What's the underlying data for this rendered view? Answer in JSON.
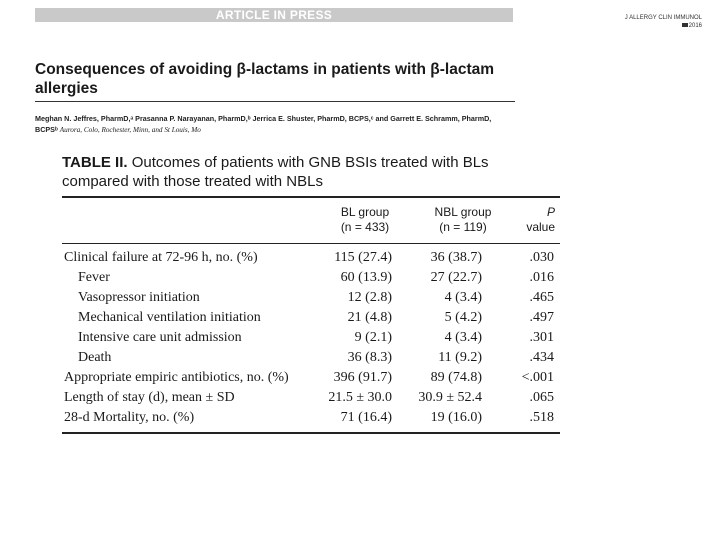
{
  "banner": "ARTICLE IN PRESS",
  "journal": {
    "name": "J ALLERGY CLIN IMMUNOL",
    "year": "2016"
  },
  "article_title": "Consequences of avoiding β-lactams in patients with β-lactam allergies",
  "authors": "Meghan N. Jeffres, PharmD,ᵃ Prasanna P. Narayanan, PharmD,ᵇ Jerrica E. Shuster, PharmD, BCPS,ᶜ and Garrett E. Schramm, PharmD, BCPSᵇ",
  "affiliation": "Aurora, Colo, Rochester, Minn, and St Louis, Mo",
  "table": {
    "number": "TABLE II.",
    "caption": "Outcomes of patients with GNB BSIs treated with BLs compared with those treated with NBLs",
    "columns": {
      "bl_line1": "BL group",
      "bl_line2": "(n = 433)",
      "nbl_line1": "NBL group",
      "nbl_line2": "(n = 119)",
      "p_line1": "P",
      "p_line2": "value"
    },
    "rows": [
      {
        "label": "Clinical failure at 72-96 h, no. (%)",
        "bl": "115 (27.4)",
        "nbl": "36 (38.7)",
        "p": ".030"
      },
      {
        "label": "Fever",
        "bl": "60 (13.9)",
        "nbl": "27 (22.7)",
        "p": ".016"
      },
      {
        "label": "Vasopressor initiation",
        "bl": "12 (2.8)",
        "nbl": "4 (3.4)",
        "p": ".465"
      },
      {
        "label": "Mechanical ventilation initiation",
        "bl": "21 (4.8)",
        "nbl": "5 (4.2)",
        "p": ".497"
      },
      {
        "label": "Intensive care unit admission",
        "bl": "9 (2.1)",
        "nbl": "4 (3.4)",
        "p": ".301"
      },
      {
        "label": "Death",
        "bl": "36 (8.3)",
        "nbl": "11 (9.2)",
        "p": ".434"
      },
      {
        "label": "Appropriate empiric antibiotics, no. (%)",
        "bl": "396 (91.7)",
        "nbl": "89 (74.8)",
        "p": "<.001"
      },
      {
        "label": "Length of stay (d), mean ± SD",
        "bl": "21.5 ± 30.0",
        "nbl": "30.9 ± 52.4",
        "p": ".065"
      },
      {
        "label": "28-d Mortality, no. (%)",
        "bl": "71 (16.4)",
        "nbl": "19 (16.0)",
        "p": ".518"
      }
    ]
  }
}
